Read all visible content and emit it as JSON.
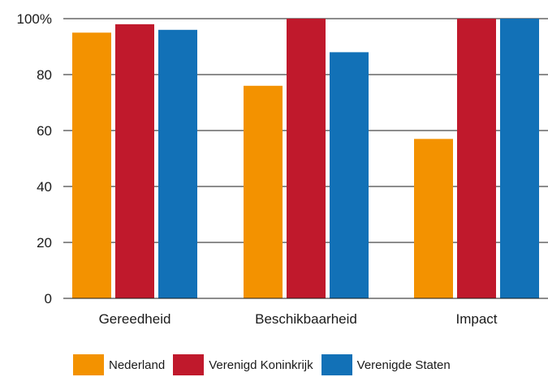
{
  "chart_data": {
    "type": "bar",
    "categories": [
      "Gereedheid",
      "Beschikbaarheid",
      "Impact"
    ],
    "series": [
      {
        "name": "Nederland",
        "color": "#F39200",
        "values": [
          95,
          76,
          57
        ]
      },
      {
        "name": "Verenigd Koninkrijk",
        "color": "#C0192C",
        "values": [
          98,
          100,
          100
        ]
      },
      {
        "name": "Verenigde Staten",
        "color": "#1271B7",
        "values": [
          96,
          88,
          100
        ]
      }
    ],
    "ylim": [
      0,
      100
    ],
    "yticks": [
      "0",
      "20",
      "40",
      "60",
      "80",
      "100%"
    ],
    "ytick_values": [
      0,
      20,
      40,
      60,
      80,
      100
    ],
    "grid": true,
    "legend_position": "bottom"
  }
}
